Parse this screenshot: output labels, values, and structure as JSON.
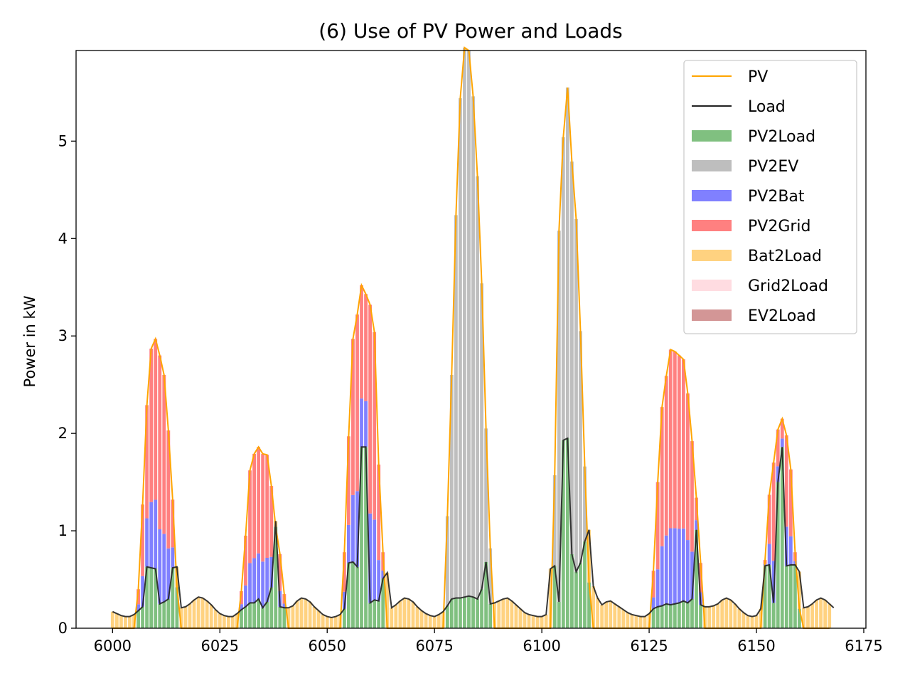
{
  "chart_data": {
    "type": "bar",
    "title": "(6) Use of PV Power and Loads",
    "xlabel": "",
    "ylabel": "Power in kW",
    "xlim": [
      5991.5,
      6175.5
    ],
    "ylim": [
      0,
      5.93
    ],
    "x_start": 6000,
    "x_end": 6167,
    "xticks": [
      6000,
      6025,
      6050,
      6075,
      6100,
      6125,
      6150,
      6175
    ],
    "yticks": [
      0,
      1,
      2,
      3,
      4,
      5
    ],
    "grid": false,
    "legend_position": "upper right",
    "legend": [
      {
        "label": "PV",
        "kind": "line",
        "color": "#FFA500"
      },
      {
        "label": "Load",
        "kind": "line",
        "color": "#222222"
      },
      {
        "label": "PV2Load",
        "kind": "bar",
        "color": "#80C080"
      },
      {
        "label": "PV2EV",
        "kind": "bar",
        "color": "#BEBEBE"
      },
      {
        "label": "PV2Bat",
        "kind": "bar",
        "color": "#8080FF"
      },
      {
        "label": "PV2Grid",
        "kind": "bar",
        "color": "#FF8080"
      },
      {
        "label": "Bat2Load",
        "kind": "bar",
        "color": "#FFD280"
      },
      {
        "label": "Grid2Load",
        "kind": "bar",
        "color": "#FFDCE1"
      },
      {
        "label": "EV2Load",
        "kind": "bar",
        "color": "#D39696"
      }
    ],
    "series": [
      {
        "name": "PV",
        "values": [
          0,
          0,
          0,
          0,
          0,
          0,
          0.4,
          1.27,
          2.29,
          2.87,
          2.97,
          2.8,
          2.6,
          2.03,
          1.32,
          0.42,
          0,
          0,
          0,
          0,
          0,
          0,
          0,
          0,
          0,
          0,
          0,
          0,
          0,
          0,
          0.38,
          0.95,
          1.62,
          1.79,
          1.86,
          1.79,
          1.78,
          1.46,
          1.04,
          0.76,
          0.35,
          0,
          0,
          0,
          0,
          0,
          0,
          0,
          0,
          0,
          0,
          0,
          0,
          0,
          0.78,
          1.97,
          2.97,
          3.22,
          3.52,
          3.43,
          3.32,
          3.04,
          1.68,
          0.78,
          0,
          0,
          0,
          0,
          0,
          0,
          0,
          0,
          0,
          0,
          0,
          0,
          0,
          0,
          1.15,
          2.6,
          4.24,
          5.44,
          5.96,
          5.93,
          5.46,
          4.64,
          3.54,
          2.05,
          0.82,
          0,
          0,
          0,
          0,
          0,
          0,
          0,
          0,
          0,
          0,
          0,
          0,
          0,
          0,
          1.57,
          4.08,
          5.04,
          5.55,
          4.79,
          4.2,
          3.05,
          1.66,
          0.47,
          0,
          0,
          0,
          0,
          0,
          0,
          0,
          0,
          0,
          0,
          0,
          0,
          0,
          0,
          0.59,
          1.5,
          2.27,
          2.59,
          2.86,
          2.84,
          2.8,
          2.76,
          2.41,
          1.92,
          1.34,
          0.67,
          0,
          0,
          0,
          0,
          0,
          0,
          0,
          0,
          0,
          0,
          0,
          0,
          0,
          0,
          0.7,
          1.37,
          1.7,
          2.04,
          2.15,
          1.98,
          1.63,
          0.78,
          0.2,
          0,
          0,
          0,
          0,
          0,
          0,
          0
        ]
      },
      {
        "name": "Load",
        "values": [
          0.17,
          0.15,
          0.13,
          0.12,
          0.12,
          0.14,
          0.18,
          0.22,
          0.63,
          0.62,
          0.61,
          0.25,
          0.27,
          0.3,
          0.62,
          0.63,
          0.21,
          0.22,
          0.25,
          0.29,
          0.32,
          0.31,
          0.28,
          0.24,
          0.19,
          0.15,
          0.13,
          0.12,
          0.12,
          0.15,
          0.19,
          0.22,
          0.26,
          0.26,
          0.3,
          0.21,
          0.27,
          0.42,
          1.1,
          0.22,
          0.21,
          0.21,
          0.23,
          0.28,
          0.31,
          0.3,
          0.27,
          0.22,
          0.18,
          0.14,
          0.12,
          0.11,
          0.12,
          0.14,
          0.2,
          0.67,
          0.68,
          0.63,
          1.86,
          1.86,
          0.26,
          0.29,
          0.28,
          0.51,
          0.57,
          0.21,
          0.24,
          0.28,
          0.31,
          0.3,
          0.27,
          0.22,
          0.18,
          0.15,
          0.13,
          0.12,
          0.14,
          0.17,
          0.23,
          0.3,
          0.31,
          0.31,
          0.32,
          0.33,
          0.32,
          0.3,
          0.4,
          0.68,
          0.25,
          0.26,
          0.28,
          0.3,
          0.31,
          0.28,
          0.24,
          0.2,
          0.16,
          0.14,
          0.13,
          0.12,
          0.12,
          0.14,
          0.61,
          0.64,
          0.27,
          1.93,
          1.95,
          0.76,
          0.58,
          0.67,
          0.89,
          1.01,
          0.43,
          0.31,
          0.24,
          0.27,
          0.28,
          0.25,
          0.22,
          0.19,
          0.16,
          0.14,
          0.13,
          0.12,
          0.12,
          0.15,
          0.2,
          0.22,
          0.23,
          0.25,
          0.24,
          0.25,
          0.26,
          0.28,
          0.26,
          0.3,
          1.01,
          0.24,
          0.22,
          0.22,
          0.23,
          0.25,
          0.29,
          0.31,
          0.29,
          0.25,
          0.2,
          0.16,
          0.13,
          0.12,
          0.13,
          0.2,
          0.64,
          0.65,
          0.26,
          1.5,
          1.86,
          0.64,
          0.65,
          0.65,
          0.58,
          0.21,
          0.22,
          0.25,
          0.29,
          0.31,
          0.29,
          0.25,
          0.21
        ]
      }
    ],
    "pv2ev_periods": [
      [
        6076,
        6088
      ],
      [
        6101,
        6111
      ]
    ]
  }
}
